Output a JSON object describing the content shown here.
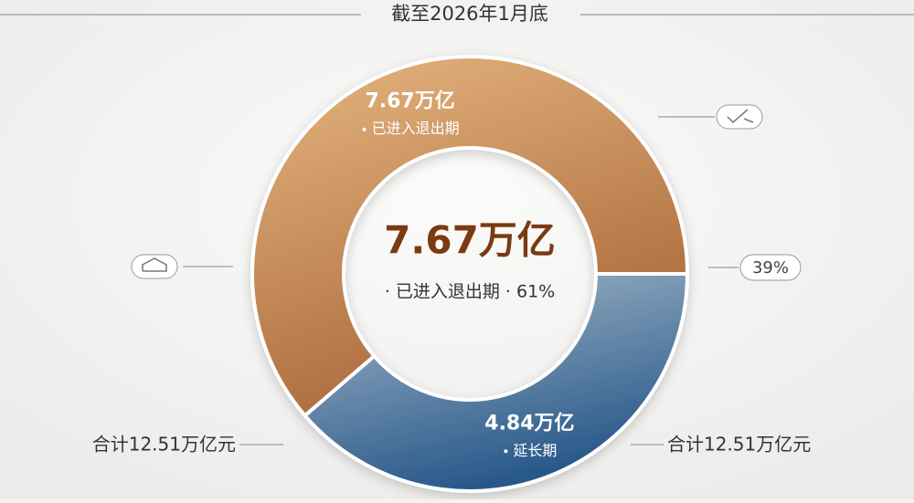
{
  "chart_data": {
    "type": "donut",
    "title": "截至2026年1月底",
    "center_value": "7.67万亿",
    "center_caption": "· 已进入退出期 · 61%",
    "categories": [
      "已进入退出期",
      "延长期"
    ],
    "values": [
      7.67,
      4.84
    ],
    "value_labels": [
      "7.67万亿",
      "4.84万亿"
    ],
    "colors": [
      [
        "#e6b680",
        "#a9683a"
      ],
      [
        "#a9bccb",
        "#28588a"
      ]
    ],
    "callout": "39%",
    "total_labels": [
      "合计12.51万亿元",
      "合计12.51万亿元"
    ]
  }
}
